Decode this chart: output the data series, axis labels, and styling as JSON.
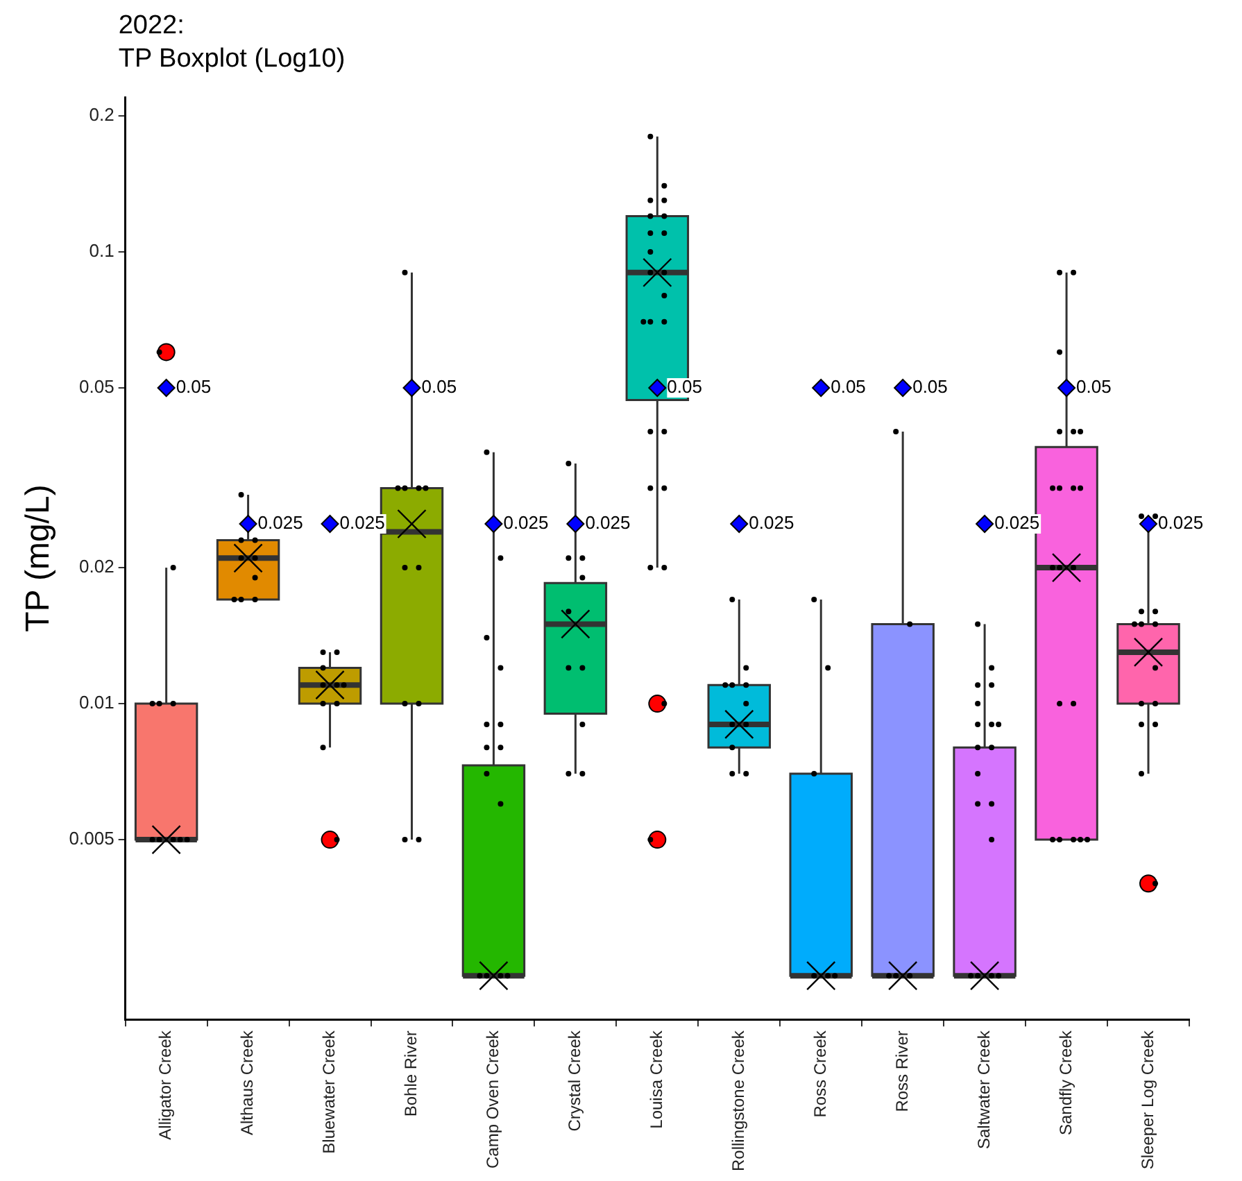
{
  "chart_data": {
    "type": "box",
    "title": "2022:\nTP Boxplot (Log10)",
    "ylabel": "TP (mg/L)",
    "log": true,
    "categories": [
      "Alligator Creek",
      "Althaus Creek",
      "Bluewater Creek",
      "Bohle River",
      "Camp Oven Creek",
      "Crystal Creek",
      "Louisa Creek",
      "Rollingstone Creek",
      "Ross Creek",
      "Ross River",
      "Saltwater Creek",
      "Sandfly Creek",
      "Sleeper Log Creek"
    ],
    "colors": [
      "#f8766d",
      "#e18a00",
      "#be9c00",
      "#8cab00",
      "#24b700",
      "#00be70",
      "#00c1ab",
      "#00bbda",
      "#00acfc",
      "#8b93ff",
      "#d575fe",
      "#f962dd",
      "#ff65ac"
    ],
    "boxes": [
      {
        "low": 0.005,
        "q1": 0.005,
        "median": 0.005,
        "q3": 0.01,
        "high": 0.02,
        "mean": 0.005,
        "outliers": [
          0.06
        ]
      },
      {
        "low": 0.017,
        "q1": 0.017,
        "median": 0.021,
        "q3": 0.023,
        "high": 0.029,
        "mean": 0.021
      },
      {
        "low": 0.008,
        "q1": 0.01,
        "median": 0.011,
        "q3": 0.012,
        "high": 0.013,
        "mean": 0.011,
        "outliers": [
          0.005
        ]
      },
      {
        "low": 0.005,
        "q1": 0.01,
        "median": 0.024,
        "q3": 0.03,
        "high": 0.09,
        "mean": 0.025
      },
      {
        "low": 0.0025,
        "q1": 0.0025,
        "median": 0.0025,
        "q3": 0.0073,
        "high": 0.036,
        "mean": 0.0025
      },
      {
        "low": 0.007,
        "q1": 0.0095,
        "median": 0.015,
        "q3": 0.0185,
        "high": 0.034,
        "mean": 0.015
      },
      {
        "low": 0.02,
        "q1": 0.047,
        "median": 0.09,
        "q3": 0.12,
        "high": 0.18,
        "mean": 0.09,
        "outliers": [
          0.01,
          0.005
        ]
      },
      {
        "low": 0.007,
        "q1": 0.008,
        "median": 0.009,
        "q3": 0.011,
        "high": 0.017,
        "mean": 0.009
      },
      {
        "low": 0.0025,
        "q1": 0.0025,
        "median": 0.0025,
        "q3": 0.007,
        "high": 0.017,
        "mean": 0.0025
      },
      {
        "low": 0.0025,
        "q1": 0.0025,
        "median": 0.0025,
        "q3": 0.015,
        "high": 0.04,
        "mean": 0.0025
      },
      {
        "low": 0.0025,
        "q1": 0.0025,
        "median": 0.0025,
        "q3": 0.008,
        "high": 0.015,
        "mean": 0.0025
      },
      {
        "low": 0.005,
        "q1": 0.005,
        "median": 0.02,
        "q3": 0.037,
        "high": 0.09,
        "mean": 0.02
      },
      {
        "low": 0.007,
        "q1": 0.01,
        "median": 0.013,
        "q3": 0.015,
        "high": 0.025,
        "mean": 0.013,
        "outliers": [
          0.004
        ]
      }
    ],
    "series": [
      {
        "type": "scatter",
        "color": "#000000",
        "marker": "circle",
        "x": [
          "Alligator Creek",
          "Alligator Creek",
          "Alligator Creek",
          "Alligator Creek",
          "Alligator Creek",
          "Alligator Creek",
          "Alligator Creek",
          "Alligator Creek",
          "Alligator Creek",
          "Alligator Creek",
          "Althaus Creek",
          "Althaus Creek",
          "Althaus Creek",
          "Althaus Creek",
          "Althaus Creek",
          "Althaus Creek",
          "Althaus Creek",
          "Althaus Creek",
          "Althaus Creek",
          "Bluewater Creek",
          "Bluewater Creek",
          "Bluewater Creek",
          "Bluewater Creek",
          "Bluewater Creek",
          "Bluewater Creek",
          "Bluewater Creek",
          "Bluewater Creek",
          "Bluewater Creek",
          "Bluewater Creek",
          "Bohle River",
          "Bohle River",
          "Bohle River",
          "Bohle River",
          "Bohle River",
          "Bohle River",
          "Bohle River",
          "Bohle River",
          "Bohle River",
          "Bohle River",
          "Bohle River",
          "Camp Oven Creek",
          "Camp Oven Creek",
          "Camp Oven Creek",
          "Camp Oven Creek",
          "Camp Oven Creek",
          "Camp Oven Creek",
          "Camp Oven Creek",
          "Camp Oven Creek",
          "Camp Oven Creek",
          "Camp Oven Creek",
          "Camp Oven Creek",
          "Camp Oven Creek",
          "Camp Oven Creek",
          "Camp Oven Creek",
          "Crystal Creek",
          "Crystal Creek",
          "Crystal Creek",
          "Crystal Creek",
          "Crystal Creek",
          "Crystal Creek",
          "Crystal Creek",
          "Crystal Creek",
          "Crystal Creek",
          "Crystal Creek",
          "Louisa Creek",
          "Louisa Creek",
          "Louisa Creek",
          "Louisa Creek",
          "Louisa Creek",
          "Louisa Creek",
          "Louisa Creek",
          "Louisa Creek",
          "Louisa Creek",
          "Louisa Creek",
          "Louisa Creek",
          "Louisa Creek",
          "Louisa Creek",
          "Louisa Creek",
          "Louisa Creek",
          "Louisa Creek",
          "Louisa Creek",
          "Louisa Creek",
          "Louisa Creek",
          "Louisa Creek",
          "Louisa Creek",
          "Louisa Creek",
          "Louisa Creek",
          "Rollingstone Creek",
          "Rollingstone Creek",
          "Rollingstone Creek",
          "Rollingstone Creek",
          "Rollingstone Creek",
          "Rollingstone Creek",
          "Rollingstone Creek",
          "Rollingstone Creek",
          "Rollingstone Creek",
          "Rollingstone Creek",
          "Rollingstone Creek",
          "Ross Creek",
          "Ross Creek",
          "Ross Creek",
          "Ross Creek",
          "Ross Creek",
          "Ross Creek",
          "Ross River",
          "Ross River",
          "Ross River",
          "Ross River",
          "Ross River",
          "Saltwater Creek",
          "Saltwater Creek",
          "Saltwater Creek",
          "Saltwater Creek",
          "Saltwater Creek",
          "Saltwater Creek",
          "Saltwater Creek",
          "Saltwater Creek",
          "Saltwater Creek",
          "Saltwater Creek",
          "Saltwater Creek",
          "Saltwater Creek",
          "Saltwater Creek",
          "Saltwater Creek",
          "Saltwater Creek",
          "Saltwater Creek",
          "Saltwater Creek",
          "Saltwater Creek",
          "Sandfly Creek",
          "Sandfly Creek",
          "Sandfly Creek",
          "Sandfly Creek",
          "Sandfly Creek",
          "Sandfly Creek",
          "Sandfly Creek",
          "Sandfly Creek",
          "Sandfly Creek",
          "Sandfly Creek",
          "Sandfly Creek",
          "Sandfly Creek",
          "Sandfly Creek",
          "Sandfly Creek",
          "Sandfly Creek",
          "Sandfly Creek",
          "Sandfly Creek",
          "Sandfly Creek",
          "Sandfly Creek",
          "Sandfly Creek",
          "Sleeper Log Creek",
          "Sleeper Log Creek",
          "Sleeper Log Creek",
          "Sleeper Log Creek",
          "Sleeper Log Creek",
          "Sleeper Log Creek",
          "Sleeper Log Creek",
          "Sleeper Log Creek",
          "Sleeper Log Creek",
          "Sleeper Log Creek",
          "Sleeper Log Creek",
          "Sleeper Log Creek",
          "Sleeper Log Creek",
          "Sleeper Log Creek"
        ],
        "values": [
          0.06,
          0.02,
          0.01,
          0.01,
          0.01,
          0.005,
          0.005,
          0.005,
          0.005,
          0.005,
          0.029,
          0.023,
          0.023,
          0.021,
          0.021,
          0.019,
          0.017,
          0.017,
          0.017,
          0.013,
          0.013,
          0.012,
          0.011,
          0.011,
          0.011,
          0.01,
          0.01,
          0.008,
          0.005,
          0.09,
          0.03,
          0.03,
          0.03,
          0.03,
          0.02,
          0.02,
          0.01,
          0.01,
          0.005,
          0.005,
          0.036,
          0.021,
          0.014,
          0.012,
          0.009,
          0.009,
          0.008,
          0.008,
          0.007,
          0.006,
          0.0025,
          0.0025,
          0.0025,
          0.0025,
          0.034,
          0.021,
          0.021,
          0.019,
          0.016,
          0.012,
          0.012,
          0.009,
          0.007,
          0.007,
          0.18,
          0.14,
          0.13,
          0.13,
          0.12,
          0.12,
          0.11,
          0.11,
          0.1,
          0.09,
          0.09,
          0.08,
          0.07,
          0.07,
          0.07,
          0.04,
          0.04,
          0.03,
          0.03,
          0.02,
          0.02,
          0.01,
          0.005,
          0.017,
          0.012,
          0.011,
          0.011,
          0.011,
          0.01,
          0.009,
          0.009,
          0.008,
          0.007,
          0.007,
          0.017,
          0.012,
          0.007,
          0.0025,
          0.0025,
          0.0025,
          0.04,
          0.015,
          0.0025,
          0.0025,
          0.0025,
          0.015,
          0.012,
          0.011,
          0.011,
          0.01,
          0.009,
          0.009,
          0.009,
          0.008,
          0.008,
          0.007,
          0.006,
          0.006,
          0.005,
          0.0025,
          0.0025,
          0.0025,
          0.0025,
          0.09,
          0.09,
          0.06,
          0.04,
          0.04,
          0.04,
          0.03,
          0.03,
          0.03,
          0.03,
          0.02,
          0.02,
          0.02,
          0.01,
          0.01,
          0.005,
          0.005,
          0.005,
          0.005,
          0.005,
          0.026,
          0.026,
          0.016,
          0.016,
          0.015,
          0.015,
          0.015,
          0.012,
          0.01,
          0.01,
          0.009,
          0.009,
          0.007,
          0.004
        ]
      },
      {
        "type": "scatter",
        "color": "#0000ff",
        "marker": "diamond",
        "x": [
          "Alligator Creek",
          "Althaus Creek",
          "Bluewater Creek",
          "Bohle River",
          "Camp Oven Creek",
          "Crystal Creek",
          "Louisa Creek",
          "Rollingstone Creek",
          "Ross Creek",
          "Ross River",
          "Saltwater Creek",
          "Sandfly Creek",
          "Sleeper Log Creek"
        ],
        "values": [
          0.05,
          0.025,
          0.025,
          0.05,
          0.025,
          0.025,
          0.05,
          0.025,
          0.05,
          0.05,
          0.025,
          0.05,
          0.025
        ],
        "value_labels": [
          "0.05",
          "0.025",
          "0.025",
          "0.05",
          "0.025",
          "0.025",
          "0.05",
          "0.025",
          "0.05",
          "0.05",
          "0.025",
          "0.05",
          "0.025"
        ]
      }
    ],
    "ylim": [
      0.002,
      0.22
    ],
    "yticks": [
      0.005,
      0.01,
      0.02,
      0.05,
      0.1,
      0.2
    ]
  }
}
